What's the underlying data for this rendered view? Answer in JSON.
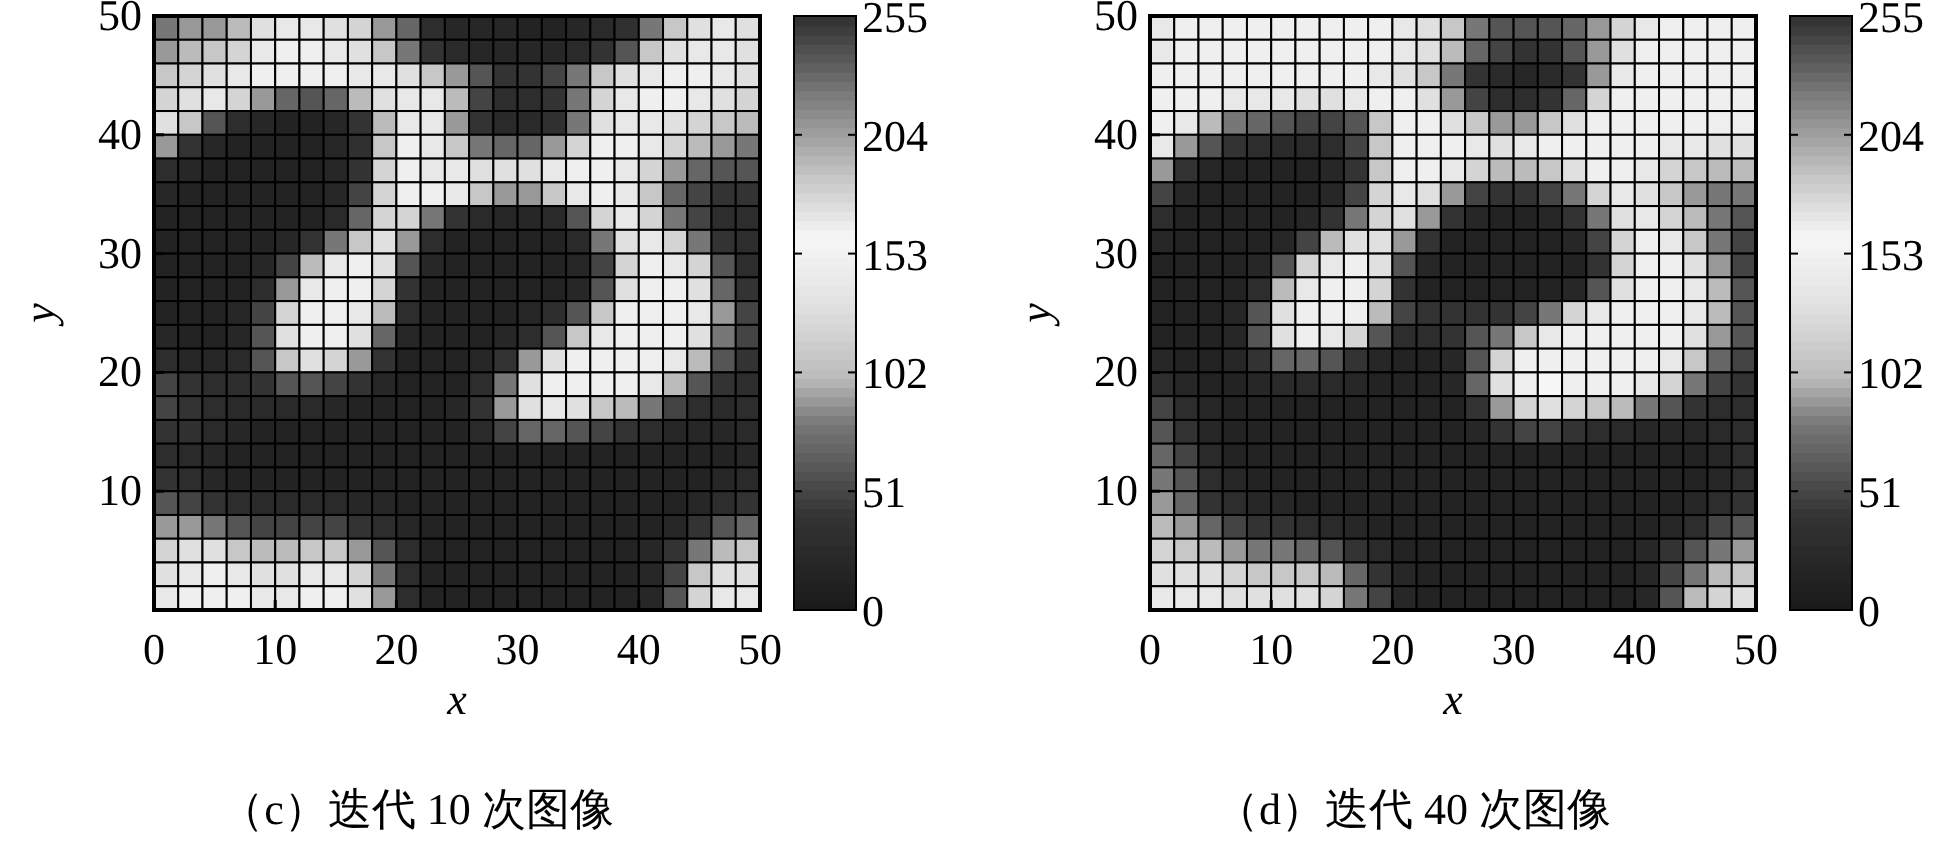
{
  "chart_data": [
    {
      "type": "heatmap",
      "title": "（c）迭代 10 次图像",
      "xlabel": "x",
      "ylabel": "y",
      "xlim": [
        0,
        50
      ],
      "ylim": [
        0,
        50
      ],
      "xticks": [
        0,
        10,
        20,
        30,
        40,
        50
      ],
      "yticks": [
        10,
        20,
        30,
        40,
        50
      ],
      "clim": [
        0,
        255
      ],
      "cticks": [
        0,
        51,
        102,
        153,
        204,
        255
      ],
      "cells": [
        [
          80,
          90,
          90,
          100,
          130,
          140,
          140,
          130,
          120,
          90,
          70,
          30,
          20,
          20,
          20,
          15,
          15,
          20,
          25,
          35,
          80,
          110,
          130,
          140,
          130
        ],
        [
          90,
          100,
          110,
          120,
          140,
          150,
          150,
          140,
          130,
          110,
          80,
          40,
          25,
          20,
          20,
          20,
          20,
          25,
          40,
          60,
          110,
          130,
          140,
          140,
          130
        ],
        [
          110,
          120,
          130,
          140,
          150,
          150,
          150,
          150,
          140,
          140,
          130,
          110,
          90,
          60,
          40,
          40,
          50,
          80,
          110,
          130,
          140,
          150,
          150,
          140,
          130
        ],
        [
          120,
          130,
          140,
          120,
          90,
          70,
          60,
          70,
          100,
          130,
          140,
          140,
          100,
          50,
          30,
          30,
          40,
          80,
          120,
          140,
          150,
          150,
          140,
          130,
          120
        ],
        [
          130,
          110,
          60,
          30,
          20,
          15,
          15,
          20,
          40,
          100,
          140,
          140,
          90,
          40,
          25,
          25,
          35,
          80,
          130,
          140,
          140,
          130,
          120,
          110,
          100
        ],
        [
          90,
          40,
          20,
          15,
          15,
          15,
          15,
          20,
          35,
          110,
          150,
          140,
          110,
          80,
          70,
          70,
          90,
          120,
          150,
          150,
          140,
          120,
          100,
          90,
          80
        ],
        [
          30,
          20,
          15,
          15,
          15,
          15,
          15,
          20,
          40,
          120,
          150,
          140,
          140,
          130,
          130,
          130,
          140,
          150,
          150,
          140,
          120,
          90,
          70,
          60,
          60
        ],
        [
          20,
          15,
          15,
          15,
          15,
          15,
          15,
          20,
          50,
          120,
          150,
          150,
          140,
          110,
          90,
          90,
          110,
          140,
          150,
          140,
          110,
          70,
          50,
          40,
          40
        ],
        [
          15,
          15,
          15,
          15,
          15,
          15,
          15,
          25,
          70,
          120,
          120,
          80,
          40,
          25,
          20,
          20,
          25,
          60,
          120,
          140,
          120,
          80,
          50,
          30,
          30
        ],
        [
          15,
          15,
          15,
          15,
          15,
          20,
          40,
          80,
          110,
          130,
          90,
          30,
          15,
          15,
          15,
          15,
          15,
          25,
          80,
          130,
          140,
          120,
          80,
          40,
          30
        ],
        [
          15,
          15,
          15,
          15,
          20,
          50,
          100,
          140,
          150,
          130,
          60,
          20,
          15,
          15,
          15,
          15,
          15,
          20,
          50,
          120,
          150,
          140,
          120,
          60,
          30
        ],
        [
          15,
          15,
          15,
          15,
          30,
          90,
          140,
          150,
          150,
          120,
          40,
          15,
          15,
          15,
          15,
          15,
          15,
          20,
          60,
          130,
          150,
          150,
          130,
          70,
          40
        ],
        [
          15,
          15,
          15,
          20,
          50,
          120,
          150,
          150,
          140,
          100,
          30,
          15,
          15,
          15,
          15,
          20,
          30,
          60,
          110,
          150,
          150,
          150,
          140,
          90,
          50
        ],
        [
          20,
          15,
          15,
          20,
          60,
          130,
          150,
          150,
          130,
          70,
          20,
          15,
          15,
          15,
          20,
          30,
          60,
          110,
          140,
          150,
          150,
          150,
          130,
          80,
          50
        ],
        [
          30,
          20,
          20,
          25,
          60,
          110,
          130,
          120,
          90,
          40,
          15,
          15,
          15,
          20,
          40,
          90,
          130,
          150,
          150,
          150,
          150,
          140,
          100,
          60,
          40
        ],
        [
          50,
          40,
          30,
          30,
          40,
          60,
          60,
          50,
          40,
          20,
          15,
          15,
          15,
          30,
          80,
          130,
          150,
          150,
          150,
          150,
          140,
          100,
          60,
          40,
          30
        ],
        [
          50,
          40,
          30,
          25,
          25,
          25,
          25,
          20,
          15,
          15,
          15,
          15,
          20,
          40,
          90,
          130,
          140,
          130,
          110,
          100,
          80,
          50,
          30,
          25,
          30
        ],
        [
          40,
          35,
          25,
          20,
          15,
          15,
          15,
          15,
          15,
          15,
          15,
          15,
          15,
          25,
          50,
          70,
          70,
          60,
          50,
          40,
          30,
          20,
          20,
          20,
          25
        ],
        [
          30,
          25,
          20,
          15,
          15,
          15,
          15,
          15,
          15,
          15,
          15,
          15,
          15,
          15,
          15,
          15,
          15,
          15,
          15,
          15,
          15,
          15,
          15,
          15,
          20
        ],
        [
          40,
          30,
          20,
          15,
          15,
          15,
          15,
          15,
          15,
          15,
          15,
          15,
          15,
          15,
          15,
          15,
          15,
          15,
          15,
          15,
          15,
          15,
          15,
          20,
          25
        ],
        [
          60,
          50,
          40,
          30,
          25,
          25,
          25,
          25,
          20,
          20,
          15,
          15,
          15,
          15,
          15,
          15,
          15,
          15,
          15,
          15,
          15,
          15,
          20,
          30,
          40
        ],
        [
          90,
          90,
          80,
          60,
          50,
          50,
          50,
          50,
          40,
          30,
          20,
          15,
          15,
          15,
          15,
          15,
          15,
          15,
          15,
          15,
          15,
          20,
          40,
          60,
          70
        ],
        [
          120,
          130,
          130,
          110,
          100,
          100,
          110,
          110,
          90,
          60,
          30,
          15,
          15,
          15,
          15,
          15,
          15,
          15,
          15,
          15,
          20,
          40,
          80,
          100,
          110
        ],
        [
          130,
          140,
          150,
          140,
          130,
          130,
          140,
          140,
          120,
          80,
          30,
          15,
          15,
          15,
          15,
          15,
          15,
          15,
          15,
          15,
          20,
          50,
          110,
          130,
          130
        ],
        [
          140,
          150,
          150,
          150,
          140,
          140,
          150,
          150,
          130,
          90,
          30,
          15,
          15,
          15,
          15,
          15,
          15,
          15,
          15,
          15,
          20,
          60,
          120,
          140,
          140
        ]
      ]
    },
    {
      "type": "heatmap",
      "title": "（d）迭代 40 次图像",
      "xlabel": "x",
      "ylabel": "y",
      "xlim": [
        0,
        50
      ],
      "ylim": [
        0,
        50
      ],
      "xticks": [
        0,
        10,
        20,
        30,
        40,
        50
      ],
      "yticks": [
        10,
        20,
        30,
        40,
        50
      ],
      "clim": [
        0,
        255
      ],
      "cticks": [
        0,
        51,
        102,
        153,
        204,
        255
      ],
      "cells": [
        [
          140,
          150,
          150,
          150,
          150,
          150,
          150,
          150,
          150,
          150,
          140,
          130,
          110,
          80,
          60,
          60,
          60,
          70,
          90,
          120,
          140,
          150,
          150,
          150,
          150
        ],
        [
          140,
          150,
          150,
          150,
          150,
          150,
          150,
          150,
          150,
          150,
          140,
          130,
          100,
          70,
          50,
          40,
          40,
          60,
          90,
          130,
          150,
          150,
          150,
          150,
          150
        ],
        [
          150,
          150,
          150,
          150,
          150,
          150,
          150,
          150,
          150,
          140,
          130,
          110,
          80,
          40,
          25,
          20,
          25,
          40,
          90,
          140,
          150,
          150,
          150,
          150,
          150
        ],
        [
          150,
          150,
          150,
          140,
          140,
          140,
          130,
          130,
          140,
          150,
          150,
          130,
          90,
          50,
          30,
          30,
          40,
          70,
          120,
          150,
          150,
          150,
          150,
          150,
          150
        ],
        [
          150,
          140,
          100,
          80,
          70,
          60,
          50,
          50,
          60,
          110,
          150,
          150,
          130,
          110,
          90,
          90,
          110,
          130,
          150,
          150,
          150,
          150,
          150,
          150,
          150
        ],
        [
          140,
          90,
          60,
          40,
          30,
          25,
          25,
          30,
          50,
          110,
          150,
          150,
          150,
          140,
          130,
          140,
          150,
          150,
          150,
          150,
          150,
          140,
          140,
          130,
          130
        ],
        [
          90,
          40,
          20,
          15,
          15,
          15,
          15,
          20,
          40,
          110,
          150,
          150,
          140,
          120,
          100,
          100,
          110,
          130,
          150,
          150,
          140,
          120,
          110,
          100,
          100
        ],
        [
          50,
          20,
          15,
          15,
          15,
          15,
          15,
          20,
          50,
          120,
          140,
          130,
          90,
          50,
          40,
          40,
          50,
          80,
          120,
          140,
          130,
          110,
          90,
          80,
          80
        ],
        [
          30,
          15,
          15,
          15,
          15,
          15,
          20,
          40,
          80,
          120,
          130,
          90,
          40,
          20,
          15,
          15,
          20,
          40,
          80,
          130,
          140,
          120,
          100,
          80,
          60
        ],
        [
          20,
          15,
          15,
          15,
          15,
          20,
          50,
          100,
          130,
          130,
          90,
          40,
          15,
          15,
          15,
          15,
          15,
          20,
          50,
          120,
          150,
          140,
          110,
          80,
          50
        ],
        [
          15,
          15,
          15,
          15,
          20,
          60,
          120,
          140,
          150,
          130,
          60,
          20,
          15,
          15,
          15,
          15,
          15,
          15,
          40,
          120,
          150,
          150,
          130,
          90,
          50
        ],
        [
          15,
          15,
          15,
          15,
          30,
          100,
          140,
          150,
          150,
          120,
          40,
          15,
          15,
          15,
          15,
          15,
          15,
          20,
          60,
          130,
          150,
          150,
          140,
          100,
          60
        ],
        [
          15,
          15,
          15,
          20,
          60,
          130,
          150,
          150,
          150,
          100,
          50,
          40,
          40,
          40,
          40,
          50,
          80,
          120,
          140,
          150,
          150,
          150,
          140,
          100,
          60
        ],
        [
          15,
          15,
          15,
          20,
          60,
          130,
          150,
          140,
          120,
          60,
          30,
          30,
          40,
          60,
          80,
          110,
          140,
          150,
          150,
          150,
          150,
          150,
          130,
          90,
          60
        ],
        [
          20,
          15,
          15,
          20,
          40,
          70,
          70,
          60,
          40,
          20,
          15,
          15,
          20,
          60,
          120,
          150,
          150,
          150,
          150,
          150,
          150,
          140,
          110,
          70,
          50
        ],
        [
          30,
          20,
          15,
          15,
          20,
          25,
          25,
          25,
          20,
          15,
          15,
          15,
          20,
          70,
          130,
          150,
          160,
          150,
          150,
          150,
          140,
          120,
          80,
          50,
          40
        ],
        [
          50,
          30,
          20,
          15,
          15,
          15,
          15,
          15,
          15,
          15,
          15,
          15,
          15,
          40,
          90,
          120,
          130,
          120,
          110,
          100,
          80,
          60,
          40,
          30,
          30
        ],
        [
          60,
          40,
          20,
          15,
          15,
          15,
          15,
          15,
          15,
          15,
          15,
          15,
          15,
          20,
          40,
          50,
          50,
          40,
          30,
          25,
          20,
          20,
          20,
          25,
          30
        ],
        [
          70,
          50,
          25,
          15,
          15,
          15,
          15,
          15,
          15,
          15,
          15,
          15,
          15,
          15,
          15,
          15,
          15,
          15,
          15,
          15,
          15,
          15,
          15,
          20,
          30
        ],
        [
          80,
          60,
          30,
          20,
          15,
          15,
          15,
          15,
          15,
          15,
          15,
          15,
          15,
          15,
          15,
          15,
          15,
          15,
          15,
          15,
          15,
          15,
          15,
          20,
          30
        ],
        [
          90,
          70,
          40,
          30,
          20,
          20,
          15,
          15,
          15,
          15,
          15,
          15,
          15,
          15,
          15,
          15,
          15,
          15,
          15,
          15,
          15,
          15,
          20,
          30,
          40
        ],
        [
          100,
          90,
          70,
          50,
          40,
          40,
          30,
          25,
          20,
          15,
          15,
          15,
          15,
          15,
          15,
          15,
          15,
          15,
          15,
          15,
          15,
          20,
          30,
          50,
          60
        ],
        [
          120,
          110,
          100,
          90,
          80,
          80,
          70,
          60,
          40,
          25,
          15,
          15,
          15,
          15,
          15,
          15,
          15,
          15,
          15,
          15,
          20,
          40,
          60,
          80,
          90
        ],
        [
          130,
          130,
          130,
          120,
          110,
          110,
          110,
          100,
          70,
          40,
          20,
          15,
          15,
          15,
          15,
          15,
          15,
          15,
          15,
          15,
          20,
          50,
          80,
          100,
          110
        ],
        [
          140,
          140,
          140,
          130,
          130,
          130,
          130,
          120,
          80,
          50,
          20,
          15,
          15,
          15,
          15,
          15,
          15,
          15,
          15,
          15,
          20,
          60,
          100,
          120,
          130
        ]
      ]
    }
  ]
}
